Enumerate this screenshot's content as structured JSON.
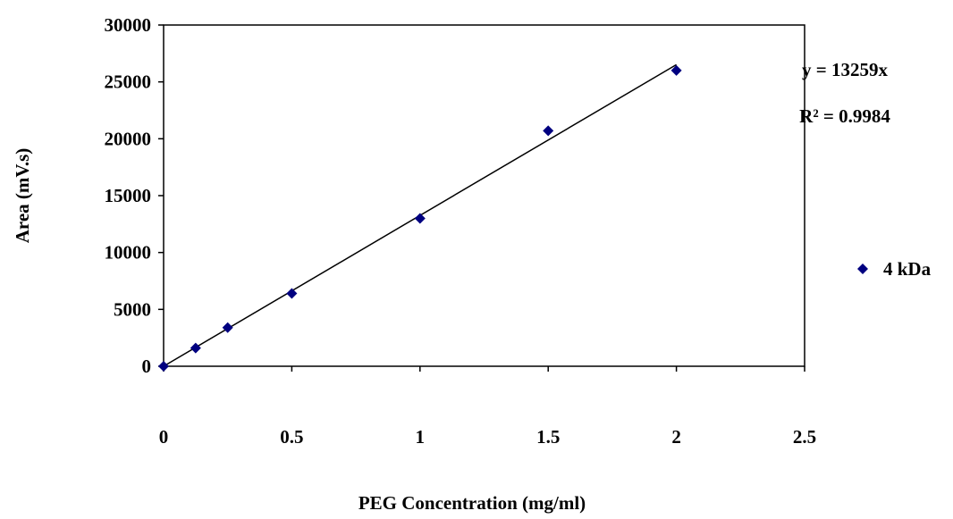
{
  "chart_data": {
    "type": "scatter",
    "title": "",
    "xlabel": "PEG Concentration (mg/ml)",
    "ylabel": "Area (mV.s)",
    "xlim": [
      0,
      2.5
    ],
    "ylim": [
      0,
      30000
    ],
    "xticks": [
      0,
      0.5,
      1,
      1.5,
      2,
      2.5
    ],
    "yticks": [
      0,
      5000,
      10000,
      15000,
      20000,
      25000,
      30000
    ],
    "xtick_labels": [
      "0",
      "0.5",
      "1",
      "1.5",
      "2",
      "2.5"
    ],
    "ytick_labels": [
      "0",
      "5000",
      "10000",
      "15000",
      "20000",
      "25000",
      "30000"
    ],
    "grid": false,
    "legend_position": "right",
    "series": [
      {
        "name": "4 kDa",
        "marker": "diamond",
        "color": "#000080",
        "x": [
          0,
          0.125,
          0.25,
          0.5,
          1,
          1.5,
          2
        ],
        "y": [
          0,
          1600,
          3400,
          6400,
          13000,
          20700,
          26000
        ]
      }
    ],
    "trendline": {
      "slope": 13259,
      "intercept": 0,
      "x_range": [
        0,
        2
      ],
      "color": "#000000"
    },
    "annotations": {
      "equation": "y = 13259x",
      "r_squared": "R² = 0.9984"
    }
  }
}
